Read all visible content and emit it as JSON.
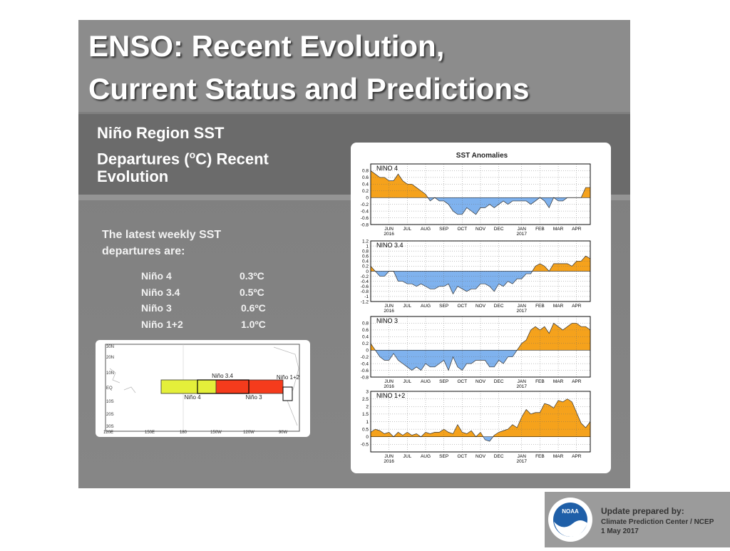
{
  "slide": {
    "title": [
      "ENSO: Recent Evolution,",
      "Current Status and Predictions"
    ],
    "subtitle": {
      "line1": "Niño Region SST",
      "line2_pre": "Departures (",
      "sup": "o",
      "line2_post": "C) Recent",
      "line3": "Evolution"
    },
    "intro": [
      "The latest weekly SST",
      "departures are:"
    ],
    "table": {
      "rows": [
        [
          "Niño 4",
          "0.3ºC"
        ],
        [
          "Niño 3.4",
          "0.5ºC"
        ],
        [
          "Niño 3",
          "0.6ºC"
        ],
        [
          "Niño 1+2",
          "1.0ºC"
        ]
      ]
    },
    "map": {
      "lat_labels": [
        "30N",
        "20N",
        "10N",
        "EQ",
        "10S",
        "20S",
        "30S"
      ],
      "lon_labels": [
        "120E",
        "150E",
        "180",
        "150W",
        "120W",
        "90W"
      ],
      "regions": [
        "Niño 3.4",
        "Niño 4",
        "Niño 3",
        "Niño 1+2"
      ]
    },
    "panel_title": "SST Anomalies",
    "footer": {
      "logo": "NOAA",
      "lines": [
        "Update prepared by:",
        "Climate Prediction Center / NCEP",
        "1 May 2017"
      ]
    }
  },
  "chart_data": [
    {
      "type": "area",
      "label": "NINO 4",
      "pos_color": "#f5a21c",
      "neg_color": "#7fb2ee",
      "grid": true,
      "ylim": [
        -0.8,
        1
      ],
      "yticks": [
        -0.8,
        -0.6,
        -0.4,
        -0.2,
        0,
        0.2,
        0.4,
        0.6,
        0.8
      ],
      "categories": [
        null,
        null,
        null,
        null,
        "JUN",
        null,
        null,
        null,
        "JUL",
        null,
        null,
        null,
        "AUG",
        null,
        null,
        null,
        "SEP",
        null,
        null,
        null,
        "OCT",
        null,
        null,
        null,
        "NOV",
        null,
        null,
        null,
        "DEC",
        null,
        null,
        null,
        null,
        "JAN",
        null,
        null,
        null,
        "FEB",
        null,
        null,
        null,
        "MAR",
        null,
        null,
        null,
        "APR",
        null,
        null,
        null
      ],
      "x_sublabels": [
        null,
        null,
        null,
        null,
        "2016",
        null,
        null,
        null,
        null,
        null,
        null,
        null,
        null,
        null,
        null,
        null,
        null,
        null,
        null,
        null,
        null,
        null,
        null,
        null,
        null,
        null,
        null,
        null,
        null,
        null,
        null,
        null,
        null,
        "2017",
        null,
        null,
        null,
        null,
        null,
        null,
        null,
        null,
        null,
        null,
        null,
        null,
        null,
        null,
        null
      ],
      "values": [
        0.8,
        0.7,
        0.6,
        0.6,
        0.5,
        0.5,
        0.7,
        0.5,
        0.4,
        0.4,
        0.3,
        0.2,
        0.1,
        -0.1,
        0,
        -0.1,
        -0.1,
        -0.2,
        -0.4,
        -0.5,
        -0.5,
        -0.3,
        -0.4,
        -0.5,
        -0.3,
        -0.3,
        -0.2,
        -0.3,
        -0.2,
        -0.1,
        -0.2,
        -0.1,
        -0.1,
        -0.1,
        -0.1,
        -0.2,
        -0.1,
        0,
        -0.1,
        -0.3,
        0,
        -0.1,
        -0.1,
        0,
        0,
        0,
        0,
        0.3,
        0.3
      ]
    },
    {
      "type": "area",
      "label": "NINO 3.4",
      "pos_color": "#f5a21c",
      "neg_color": "#7fb2ee",
      "grid": true,
      "ylim": [
        -1.2,
        1.2
      ],
      "yticks": [
        -1.2,
        -1,
        -0.8,
        -0.6,
        -0.4,
        -0.2,
        0,
        0.2,
        0.4,
        0.6,
        0.8,
        1,
        1.2
      ],
      "categories": [
        null,
        null,
        null,
        null,
        "JUN",
        null,
        null,
        null,
        "JUL",
        null,
        null,
        null,
        "AUG",
        null,
        null,
        null,
        "SEP",
        null,
        null,
        null,
        "OCT",
        null,
        null,
        null,
        "NOV",
        null,
        null,
        null,
        "DEC",
        null,
        null,
        null,
        null,
        "JAN",
        null,
        null,
        null,
        "FEB",
        null,
        null,
        null,
        "MAR",
        null,
        null,
        null,
        "APR",
        null,
        null,
        null
      ],
      "x_sublabels": [
        null,
        null,
        null,
        null,
        "2016",
        null,
        null,
        null,
        null,
        null,
        null,
        null,
        null,
        null,
        null,
        null,
        null,
        null,
        null,
        null,
        null,
        null,
        null,
        null,
        null,
        null,
        null,
        null,
        null,
        null,
        null,
        null,
        null,
        "2017",
        null,
        null,
        null,
        null,
        null,
        null,
        null,
        null,
        null,
        null,
        null,
        null,
        null,
        null,
        null
      ],
      "values": [
        0.2,
        0,
        -0.2,
        -0.2,
        0,
        0,
        -0.4,
        -0.4,
        -0.5,
        -0.5,
        -0.6,
        -0.5,
        -0.6,
        -0.7,
        -0.7,
        -0.6,
        -0.6,
        -0.5,
        -0.9,
        -0.6,
        -0.7,
        -0.8,
        -0.7,
        -0.7,
        -0.5,
        -0.5,
        -0.6,
        -0.8,
        -0.5,
        -0.6,
        -0.4,
        -0.5,
        -0.3,
        -0.3,
        -0.1,
        -0.1,
        0.2,
        0.3,
        0.2,
        0,
        0.3,
        0.3,
        0.3,
        0.3,
        0.2,
        0.4,
        0.4,
        0.6,
        0.5
      ]
    },
    {
      "type": "area",
      "label": "NINO 3",
      "pos_color": "#f5a21c",
      "neg_color": "#7fb2ee",
      "grid": true,
      "ylim": [
        -0.8,
        1
      ],
      "yticks": [
        -0.8,
        -0.6,
        -0.4,
        -0.2,
        0,
        0.2,
        0.4,
        0.6,
        0.8
      ],
      "categories": [
        null,
        null,
        null,
        null,
        "JUN",
        null,
        null,
        null,
        "JUL",
        null,
        null,
        null,
        "AUG",
        null,
        null,
        null,
        "SEP",
        null,
        null,
        null,
        "OCT",
        null,
        null,
        null,
        "NOV",
        null,
        null,
        null,
        "DEC",
        null,
        null,
        null,
        null,
        "JAN",
        null,
        null,
        null,
        "FEB",
        null,
        null,
        null,
        "MAR",
        null,
        null,
        null,
        "APR",
        null,
        null,
        null
      ],
      "x_sublabels": [
        null,
        null,
        null,
        null,
        "2016",
        null,
        null,
        null,
        null,
        null,
        null,
        null,
        null,
        null,
        null,
        null,
        null,
        null,
        null,
        null,
        null,
        null,
        null,
        null,
        null,
        null,
        null,
        null,
        null,
        null,
        null,
        null,
        null,
        "2017",
        null,
        null,
        null,
        null,
        null,
        null,
        null,
        null,
        null,
        null,
        null,
        null,
        null,
        null,
        null
      ],
      "values": [
        0.2,
        0,
        -0.2,
        -0.3,
        -0.3,
        -0.1,
        -0.3,
        -0.4,
        -0.5,
        -0.6,
        -0.5,
        -0.6,
        -0.4,
        -0.5,
        -0.5,
        -0.4,
        -0.3,
        -0.6,
        -0.2,
        -0.5,
        -0.6,
        -0.4,
        -0.4,
        -0.3,
        -0.3,
        -0.3,
        -0.5,
        -0.5,
        -0.3,
        -0.4,
        -0.2,
        -0.2,
        0,
        0.2,
        0.3,
        0.6,
        0.7,
        0.6,
        0.7,
        0.5,
        0.8,
        0.7,
        0.6,
        0.7,
        0.8,
        0.8,
        0.7,
        0.7,
        0.6
      ]
    },
    {
      "type": "area",
      "label": "NINO 1+2",
      "pos_color": "#f5a21c",
      "neg_color": "#7fb2ee",
      "grid": true,
      "ylim": [
        -1,
        3
      ],
      "yticks": [
        -0.5,
        0,
        0.5,
        1,
        1.5,
        2,
        2.5,
        3
      ],
      "categories": [
        null,
        null,
        null,
        null,
        "JUN",
        null,
        null,
        null,
        "JUL",
        null,
        null,
        null,
        "AUG",
        null,
        null,
        null,
        "SEP",
        null,
        null,
        null,
        "OCT",
        null,
        null,
        null,
        "NOV",
        null,
        null,
        null,
        "DEC",
        null,
        null,
        null,
        null,
        "JAN",
        null,
        null,
        null,
        "FEB",
        null,
        null,
        null,
        "MAR",
        null,
        null,
        null,
        "APR",
        null,
        null,
        null
      ],
      "x_sublabels": [
        null,
        null,
        null,
        null,
        "2016",
        null,
        null,
        null,
        null,
        null,
        null,
        null,
        null,
        null,
        null,
        null,
        null,
        null,
        null,
        null,
        null,
        null,
        null,
        null,
        null,
        null,
        null,
        null,
        null,
        null,
        null,
        null,
        null,
        "2017",
        null,
        null,
        null,
        null,
        null,
        null,
        null,
        null,
        null,
        null,
        null,
        null,
        null,
        null,
        null
      ],
      "values": [
        0.3,
        0.5,
        0.4,
        0.2,
        0.3,
        0,
        0.3,
        0.1,
        0.3,
        0.1,
        0.2,
        0,
        0.3,
        0.2,
        0.3,
        0.3,
        0.5,
        0.3,
        0.2,
        0.8,
        0.3,
        0.2,
        0.4,
        0,
        0.3,
        -0.2,
        -0.3,
        0.1,
        0.3,
        0.4,
        0.5,
        0.8,
        0.6,
        1.3,
        1.8,
        1.5,
        1.6,
        1.6,
        2.2,
        2.1,
        1.9,
        2.4,
        2.3,
        2.5,
        2.3,
        1.6,
        0.9,
        0.6,
        1
      ]
    }
  ]
}
